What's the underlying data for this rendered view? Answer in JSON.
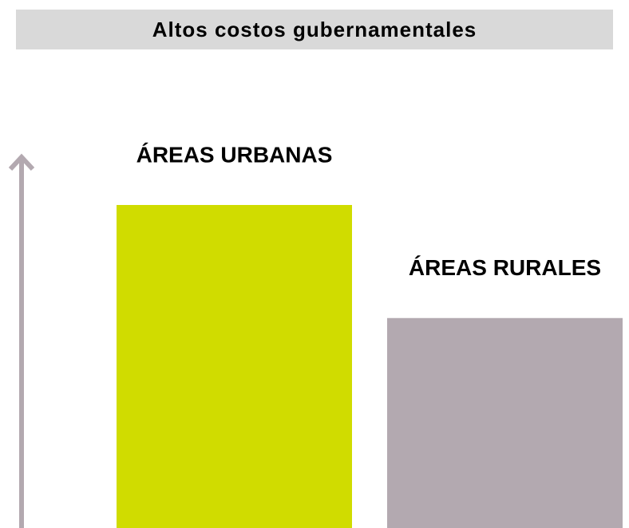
{
  "chart_data": {
    "type": "bar",
    "title": "Altos costos gubernamentales",
    "categories": [
      "ÁREAS URBANAS",
      "ÁREAS RURALES"
    ],
    "values": [
      100,
      65
    ],
    "colors": [
      "#d0dc00",
      "#b3a9b0"
    ],
    "ylim": [
      0,
      100
    ]
  }
}
